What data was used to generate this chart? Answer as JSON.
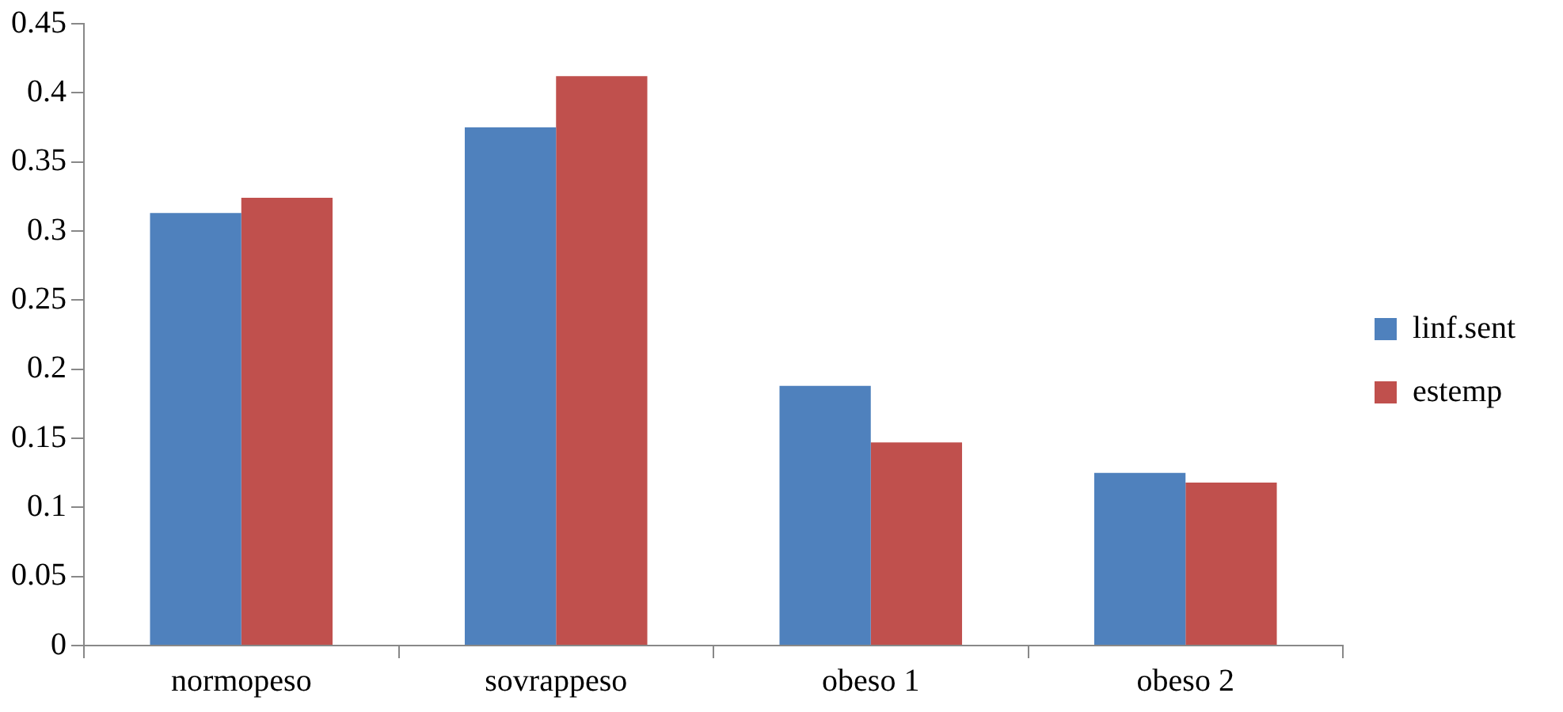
{
  "chart_data": {
    "type": "bar",
    "categories": [
      "normopeso",
      "sovrappeso",
      "obeso 1",
      "obeso 2"
    ],
    "series": [
      {
        "name": "linf.sent",
        "color": "#4f81bd",
        "values": [
          0.313,
          0.375,
          0.188,
          0.125
        ]
      },
      {
        "name": "estemp",
        "color": "#c0504d",
        "values": [
          0.324,
          0.412,
          0.147,
          0.118
        ]
      }
    ],
    "ylim": [
      0,
      0.45
    ],
    "yticks": [
      0,
      0.05,
      0.1,
      0.15,
      0.2,
      0.25,
      0.3,
      0.35,
      0.4,
      0.45
    ],
    "grid": false,
    "legend": "right"
  }
}
